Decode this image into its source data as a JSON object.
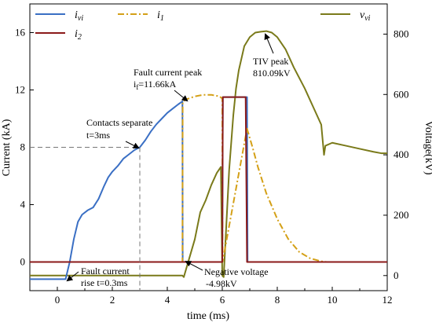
{
  "chart_data": {
    "type": "line",
    "xlabel": "time (ms)",
    "ylabel_left": "Current (kA)",
    "ylabel_right": "Voltage(kV)",
    "xlim": [
      -1,
      12
    ],
    "ylim_left": [
      -2,
      18
    ],
    "ylim_right": [
      -50,
      900
    ],
    "xticks": [
      0,
      2,
      4,
      6,
      8,
      10,
      12
    ],
    "yticks_left": [
      0,
      4,
      8,
      12,
      16
    ],
    "yticks_right": [
      0,
      200,
      400,
      600,
      800
    ],
    "grid": false,
    "legend": [
      {
        "label": "i",
        "sub": "vi",
        "color": "#3a6fc4",
        "style": "solid"
      },
      {
        "label": "i",
        "sub": "1",
        "color": "#d4a017",
        "style": "dashdot"
      },
      {
        "label": "i",
        "sub": "2",
        "color": "#8b1a1a",
        "style": "solid"
      },
      {
        "label": "v",
        "sub": "vi",
        "color": "#7a7a1a",
        "style": "solid"
      }
    ],
    "series": [
      {
        "name": "ivi",
        "axis": "left",
        "color": "#3a6fc4",
        "x": [
          -1,
          0.3,
          0.45,
          0.6,
          0.75,
          0.9,
          1.1,
          1.3,
          1.5,
          1.7,
          1.85,
          2.0,
          2.2,
          2.4,
          2.6,
          2.8,
          3.0,
          3.2,
          3.4,
          3.6,
          3.8,
          4.0,
          4.2,
          4.4,
          4.55,
          4.56,
          6.0,
          6.02,
          6.9,
          6.92,
          12
        ],
        "y": [
          -1.2,
          -1.2,
          0,
          1.6,
          2.8,
          3.3,
          3.6,
          3.8,
          4.4,
          5.3,
          5.9,
          6.3,
          6.7,
          7.2,
          7.5,
          7.8,
          8.0,
          8.5,
          9.1,
          9.6,
          10.0,
          10.4,
          10.7,
          11.0,
          11.2,
          0,
          0,
          11.5,
          11.5,
          0,
          0
        ]
      },
      {
        "name": "i1",
        "axis": "left",
        "color": "#d4a017",
        "x": [
          -1,
          4.55,
          4.56,
          4.7,
          5.0,
          5.3,
          5.6,
          5.9,
          6.0,
          6.01,
          6.9,
          7.1,
          7.3,
          7.6,
          8.0,
          8.4,
          8.8,
          9.2,
          9.6,
          9.8,
          12
        ],
        "y": [
          0,
          0,
          11.2,
          11.35,
          11.55,
          11.66,
          11.66,
          11.55,
          11.4,
          0,
          9.3,
          8.0,
          6.6,
          4.8,
          3.0,
          1.6,
          0.7,
          0.25,
          0.05,
          0,
          0
        ]
      },
      {
        "name": "i2",
        "axis": "left",
        "color": "#8b1a1a",
        "x": [
          -1,
          6.0,
          6.02,
          6.4,
          6.85,
          6.9,
          12
        ],
        "y": [
          0,
          0,
          11.5,
          11.5,
          11.5,
          0,
          0
        ]
      },
      {
        "name": "vvi",
        "axis": "right",
        "color": "#7a7a1a",
        "x": [
          -1,
          4.55,
          4.6,
          5.0,
          5.2,
          5.4,
          5.6,
          5.8,
          5.95,
          6.0,
          6.05,
          6.25,
          6.4,
          6.5,
          6.6,
          6.8,
          7.0,
          7.2,
          7.4,
          7.6,
          7.8,
          8.0,
          8.3,
          8.6,
          9.0,
          9.3,
          9.6,
          9.7,
          9.75,
          10.0,
          10.5,
          11.0,
          11.5,
          11.8,
          12
        ],
        "y": [
          0,
          0,
          -5,
          120,
          210,
          250,
          300,
          340,
          360,
          0,
          -5,
          350,
          530,
          620,
          680,
          760,
          790,
          805,
          808,
          810,
          805,
          790,
          750,
          690,
          620,
          560,
          500,
          400,
          430,
          440,
          430,
          420,
          410,
          405,
          405
        ]
      }
    ],
    "annotations": [
      {
        "lines": [
          "Fault current peak",
          "i_f=11.66kA"
        ]
      },
      {
        "lines": [
          "TIV peak",
          "810.09kV"
        ]
      },
      {
        "lines": [
          "Contacts separate",
          "t=3ms"
        ]
      },
      {
        "lines": [
          "Fault current",
          "rise t=0.3ms"
        ]
      },
      {
        "lines": [
          "Negative voltage",
          "-4.98kV"
        ]
      }
    ]
  }
}
